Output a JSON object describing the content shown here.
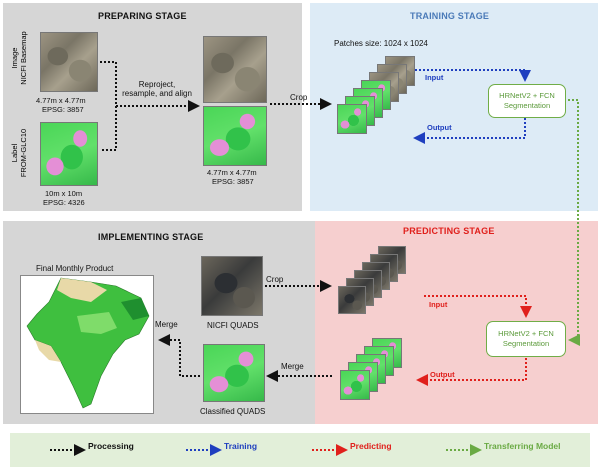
{
  "stages": {
    "preparing": "PREPARING STAGE",
    "training": "TRAINING STAGE",
    "implementing": "IMPLEMENTING STAGE",
    "predicting": "PREDICTING STAGE"
  },
  "preparing": {
    "image_axis_line1": "Image",
    "image_axis_line2": "NICFI Basemap",
    "image_res": "4.77m x 4.77m",
    "image_epsg": "EPSG: 3857",
    "label_axis_line1": "Label",
    "label_axis_line2": "FROM-GLC10",
    "label_res": "10m x 10m",
    "label_epsg": "EPSG: 4326",
    "reproject_line1": "Reproject,",
    "reproject_line2": "resample, and align",
    "aligned_res": "4.77m x 4.77m",
    "aligned_epsg": "EPSG: 3857",
    "crop": "Crop"
  },
  "training": {
    "patches": "Patches size: 1024 x 1024",
    "input": "Input",
    "output": "Output",
    "model_line1": "HRNetV2 + FCN",
    "model_line2": "Segmentation"
  },
  "implementing": {
    "final_product": "Final Monthly Product",
    "nicfi_quads": "NICFI QUADS",
    "crop": "Crop",
    "merge_left": "Merge",
    "merge_right": "Merge",
    "classified_quads": "Classified QUADS"
  },
  "predicting": {
    "input": "Input",
    "output": "Output",
    "model_line1": "HRNetV2 + FCN",
    "model_line2": "Segmentation"
  },
  "legend": {
    "processing": "Processing",
    "training": "Training",
    "predicting": "Predicting",
    "transferring": "Transferring Model"
  },
  "colors": {
    "processing": "#111111",
    "training": "#1f3fbf",
    "predicting": "#e0201c",
    "transferring": "#6aaa44",
    "preparing_bg": "#d6d6d6",
    "training_bg": "#ddebf6",
    "implementing_bg": "#d6d6d6",
    "predicting_bg": "#f6cfcf",
    "legend_bg": "#e2efd9"
  },
  "icons": {
    "arrow": "arrow-icon",
    "ellipsis": "ellipsis-icon"
  }
}
